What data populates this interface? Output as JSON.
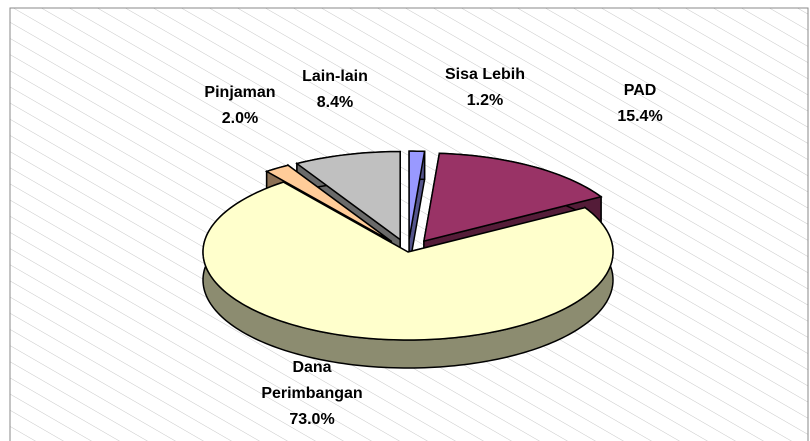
{
  "chart_data": {
    "type": "pie",
    "categories": [
      "Sisa Lebih",
      "PAD",
      "Dana Perimbangan",
      "Pinjaman",
      "Lain-lain"
    ],
    "values": [
      1.2,
      15.4,
      73.0,
      2.0,
      8.4
    ],
    "value_labels": [
      "1.2%",
      "15.4%",
      "73.0%",
      "2.0%",
      "8.4%"
    ],
    "colors": [
      "#9999ff",
      "#993366",
      "#ffffcc",
      "#ffcc99",
      "#c0c0c0"
    ]
  }
}
